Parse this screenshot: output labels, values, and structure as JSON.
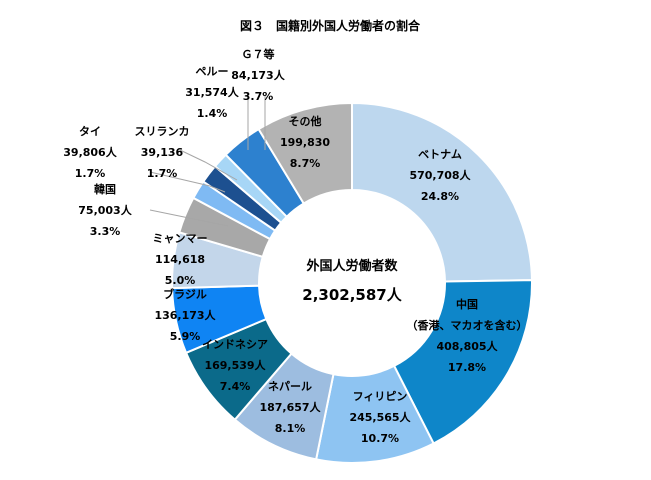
{
  "chart_data": {
    "type": "donut",
    "title": "図３　国籍別外国人労働者の割合",
    "center_label": "外国人労働者数",
    "center_value": "2,302,587人",
    "slices": [
      {
        "name": "ベトナム",
        "count": "570,708人",
        "pct": 24.8,
        "pct_label": "24.8%",
        "color": "#bdd7ee"
      },
      {
        "name": "中国",
        "subname": "（香港、マカオを含む）",
        "count": "408,805人",
        "pct": 17.8,
        "pct_label": "17.8%",
        "color": "#0e86c9"
      },
      {
        "name": "フィリピン",
        "count": "245,565人",
        "pct": 10.7,
        "pct_label": "10.7%",
        "color": "#8ec4f2"
      },
      {
        "name": "ネパール",
        "count": "187,657人",
        "pct": 8.1,
        "pct_label": "8.1%",
        "color": "#9dbde0"
      },
      {
        "name": "インドネシア",
        "count": "169,539人",
        "pct": 7.4,
        "pct_label": "7.4%",
        "color": "#0b6a8a"
      },
      {
        "name": "ブラジル",
        "count": "136,173人",
        "pct": 5.9,
        "pct_label": "5.9%",
        "color": "#0f84f3"
      },
      {
        "name": "ミャンマー",
        "count": "114,618",
        "pct": 5.0,
        "pct_label": "5.0%",
        "color": "#c3d6ea"
      },
      {
        "name": "韓国",
        "count": "75,003人",
        "pct": 3.3,
        "pct_label": "3.3%",
        "color": "#a8a8a8"
      },
      {
        "name": "タイ",
        "count": "39,806人",
        "pct": 1.7,
        "pct_label": "1.7%",
        "color": "#7fbaf3"
      },
      {
        "name": "スリランカ",
        "count": "39,136",
        "pct": 1.7,
        "pct_label": "1.7%",
        "color": "#1d5090"
      },
      {
        "name": "ペルー",
        "count": "31,574人",
        "pct": 1.4,
        "pct_label": "1.4%",
        "color": "#a7d6f6"
      },
      {
        "name": "Ｇ７等",
        "count": "84,173人",
        "pct": 3.7,
        "pct_label": "3.7%",
        "color": "#2d81cf"
      },
      {
        "name": "その他",
        "count": "199,830",
        "pct": 8.7,
        "pct_label": "8.7%",
        "color": "#b3b3b3"
      }
    ]
  }
}
